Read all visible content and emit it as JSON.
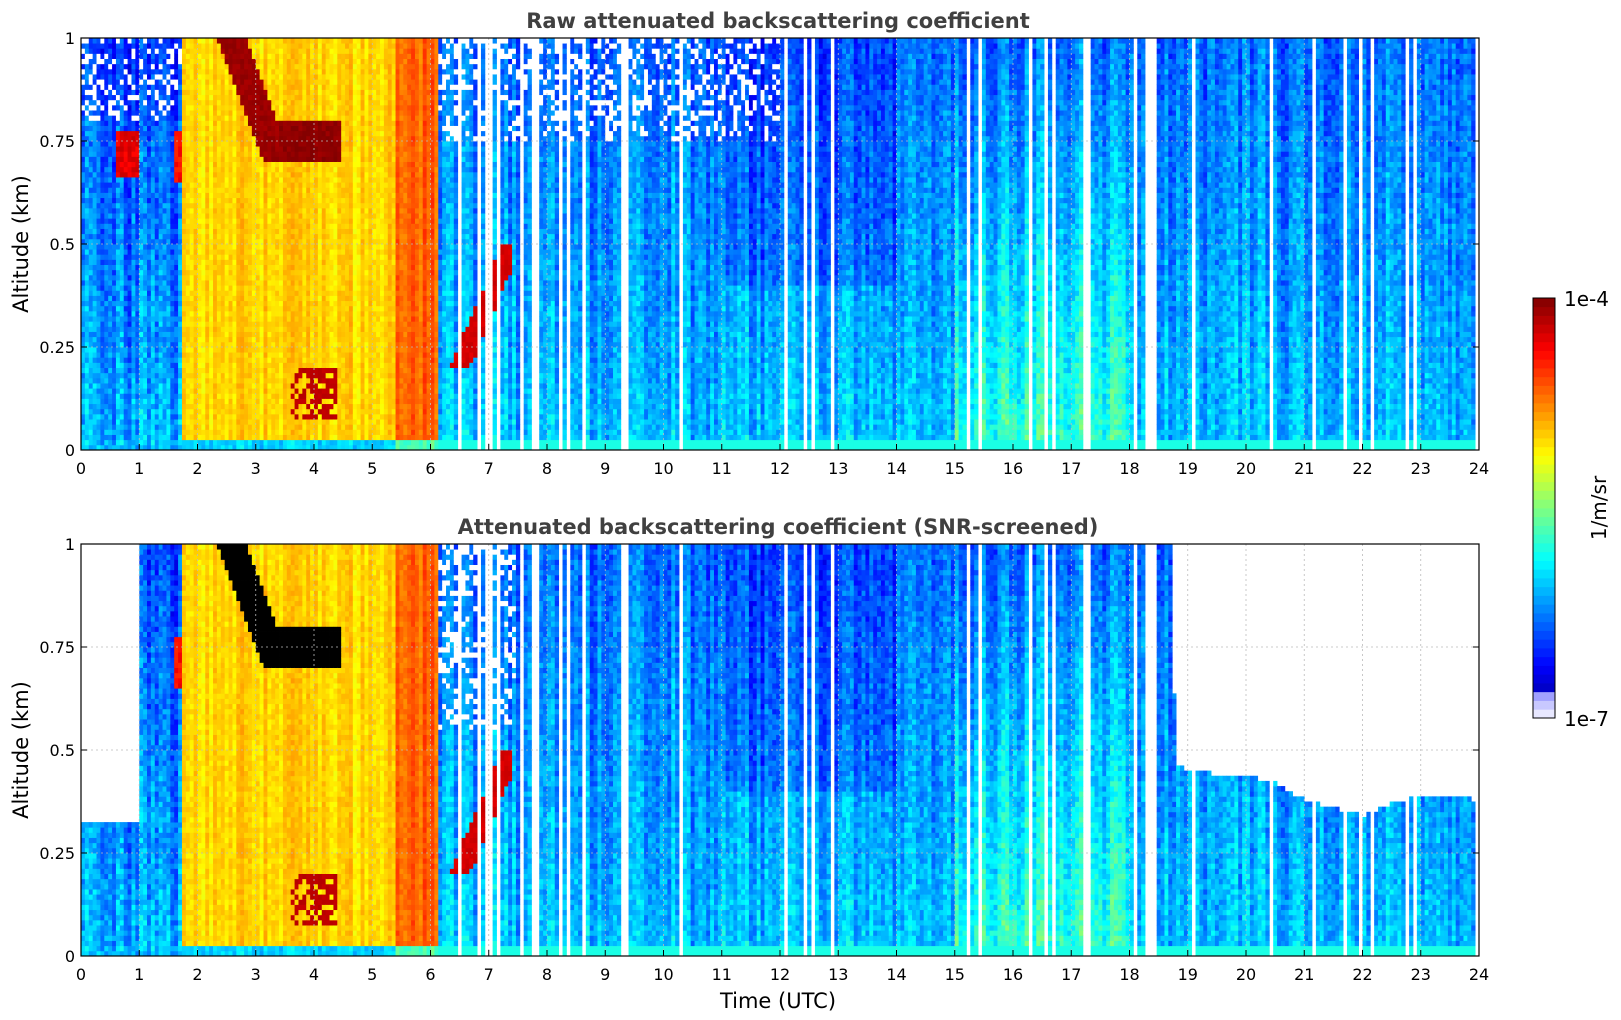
{
  "chart_data": [
    {
      "type": "heatmap",
      "title": "Raw attenuated backscattering coefficient",
      "xlabel": "",
      "ylabel": "Altitude (km)",
      "xlim": [
        0,
        24
      ],
      "ylim": [
        0,
        1
      ],
      "x_ticks": [
        "0",
        "1",
        "2",
        "3",
        "4",
        "5",
        "6",
        "7",
        "8",
        "9",
        "10",
        "11",
        "12",
        "13",
        "14",
        "15",
        "16",
        "17",
        "18",
        "19",
        "20",
        "21",
        "22",
        "23",
        "24"
      ],
      "y_ticks": [
        "0",
        "0.25",
        "0.5",
        "0.75",
        "1"
      ],
      "grid": true,
      "features": [
        {
          "feature": "clear-air",
          "t_start": 0,
          "t_end": 1.7,
          "value_log10": -6.3
        },
        {
          "feature": "fog-layer",
          "t_start": 1.7,
          "t_end": 6.15,
          "value_log10": -5.0
        },
        {
          "feature": "dense-cloud",
          "t_start": 2.5,
          "t_end": 4.6,
          "z_start": 0.72,
          "z_end": 1.0,
          "value_log10": -4.1
        },
        {
          "feature": "dense-cloud",
          "t_start": 3.5,
          "t_end": 4.6,
          "z_start": 0.08,
          "z_end": 0.2,
          "value_log10": -4.2
        },
        {
          "feature": "dense-cloud",
          "t_start": 6.3,
          "t_end": 7.4,
          "z_start": 0.22,
          "z_end": 0.48,
          "value_log10": -4.2
        },
        {
          "feature": "clear-air",
          "t_start": 6.15,
          "t_end": 24,
          "value_log10": -6.2
        }
      ]
    },
    {
      "type": "heatmap",
      "title": "Attenuated backscattering coefficient (SNR-screened)",
      "xlabel": "Time (UTC)",
      "ylabel": "Altitude (km)",
      "xlim": [
        0,
        24
      ],
      "ylim": [
        0,
        1
      ],
      "x_ticks": [
        "0",
        "1",
        "2",
        "3",
        "4",
        "5",
        "6",
        "7",
        "8",
        "9",
        "10",
        "11",
        "12",
        "13",
        "14",
        "15",
        "16",
        "17",
        "18",
        "19",
        "20",
        "21",
        "22",
        "23",
        "24"
      ],
      "y_ticks": [
        "0",
        "0.25",
        "0.5",
        "0.75",
        "1"
      ],
      "grid": true,
      "screened_top_km": [
        [
          0,
          0.33
        ],
        [
          1.0,
          1.0
        ],
        [
          18.7,
          1.0
        ],
        [
          18.8,
          0.46
        ],
        [
          19.5,
          0.44
        ],
        [
          20.0,
          0.44
        ],
        [
          20.5,
          0.42
        ],
        [
          21.0,
          0.38
        ],
        [
          21.5,
          0.36
        ],
        [
          22.0,
          0.34
        ],
        [
          22.5,
          0.37
        ],
        [
          23.0,
          0.39
        ],
        [
          24,
          0.38
        ]
      ]
    }
  ],
  "colorbar": {
    "label": "1/m/sr",
    "max_label": "1e-4",
    "min_label": "1e-7",
    "log_min": -7,
    "log_max": -4,
    "colormap": "jet"
  }
}
